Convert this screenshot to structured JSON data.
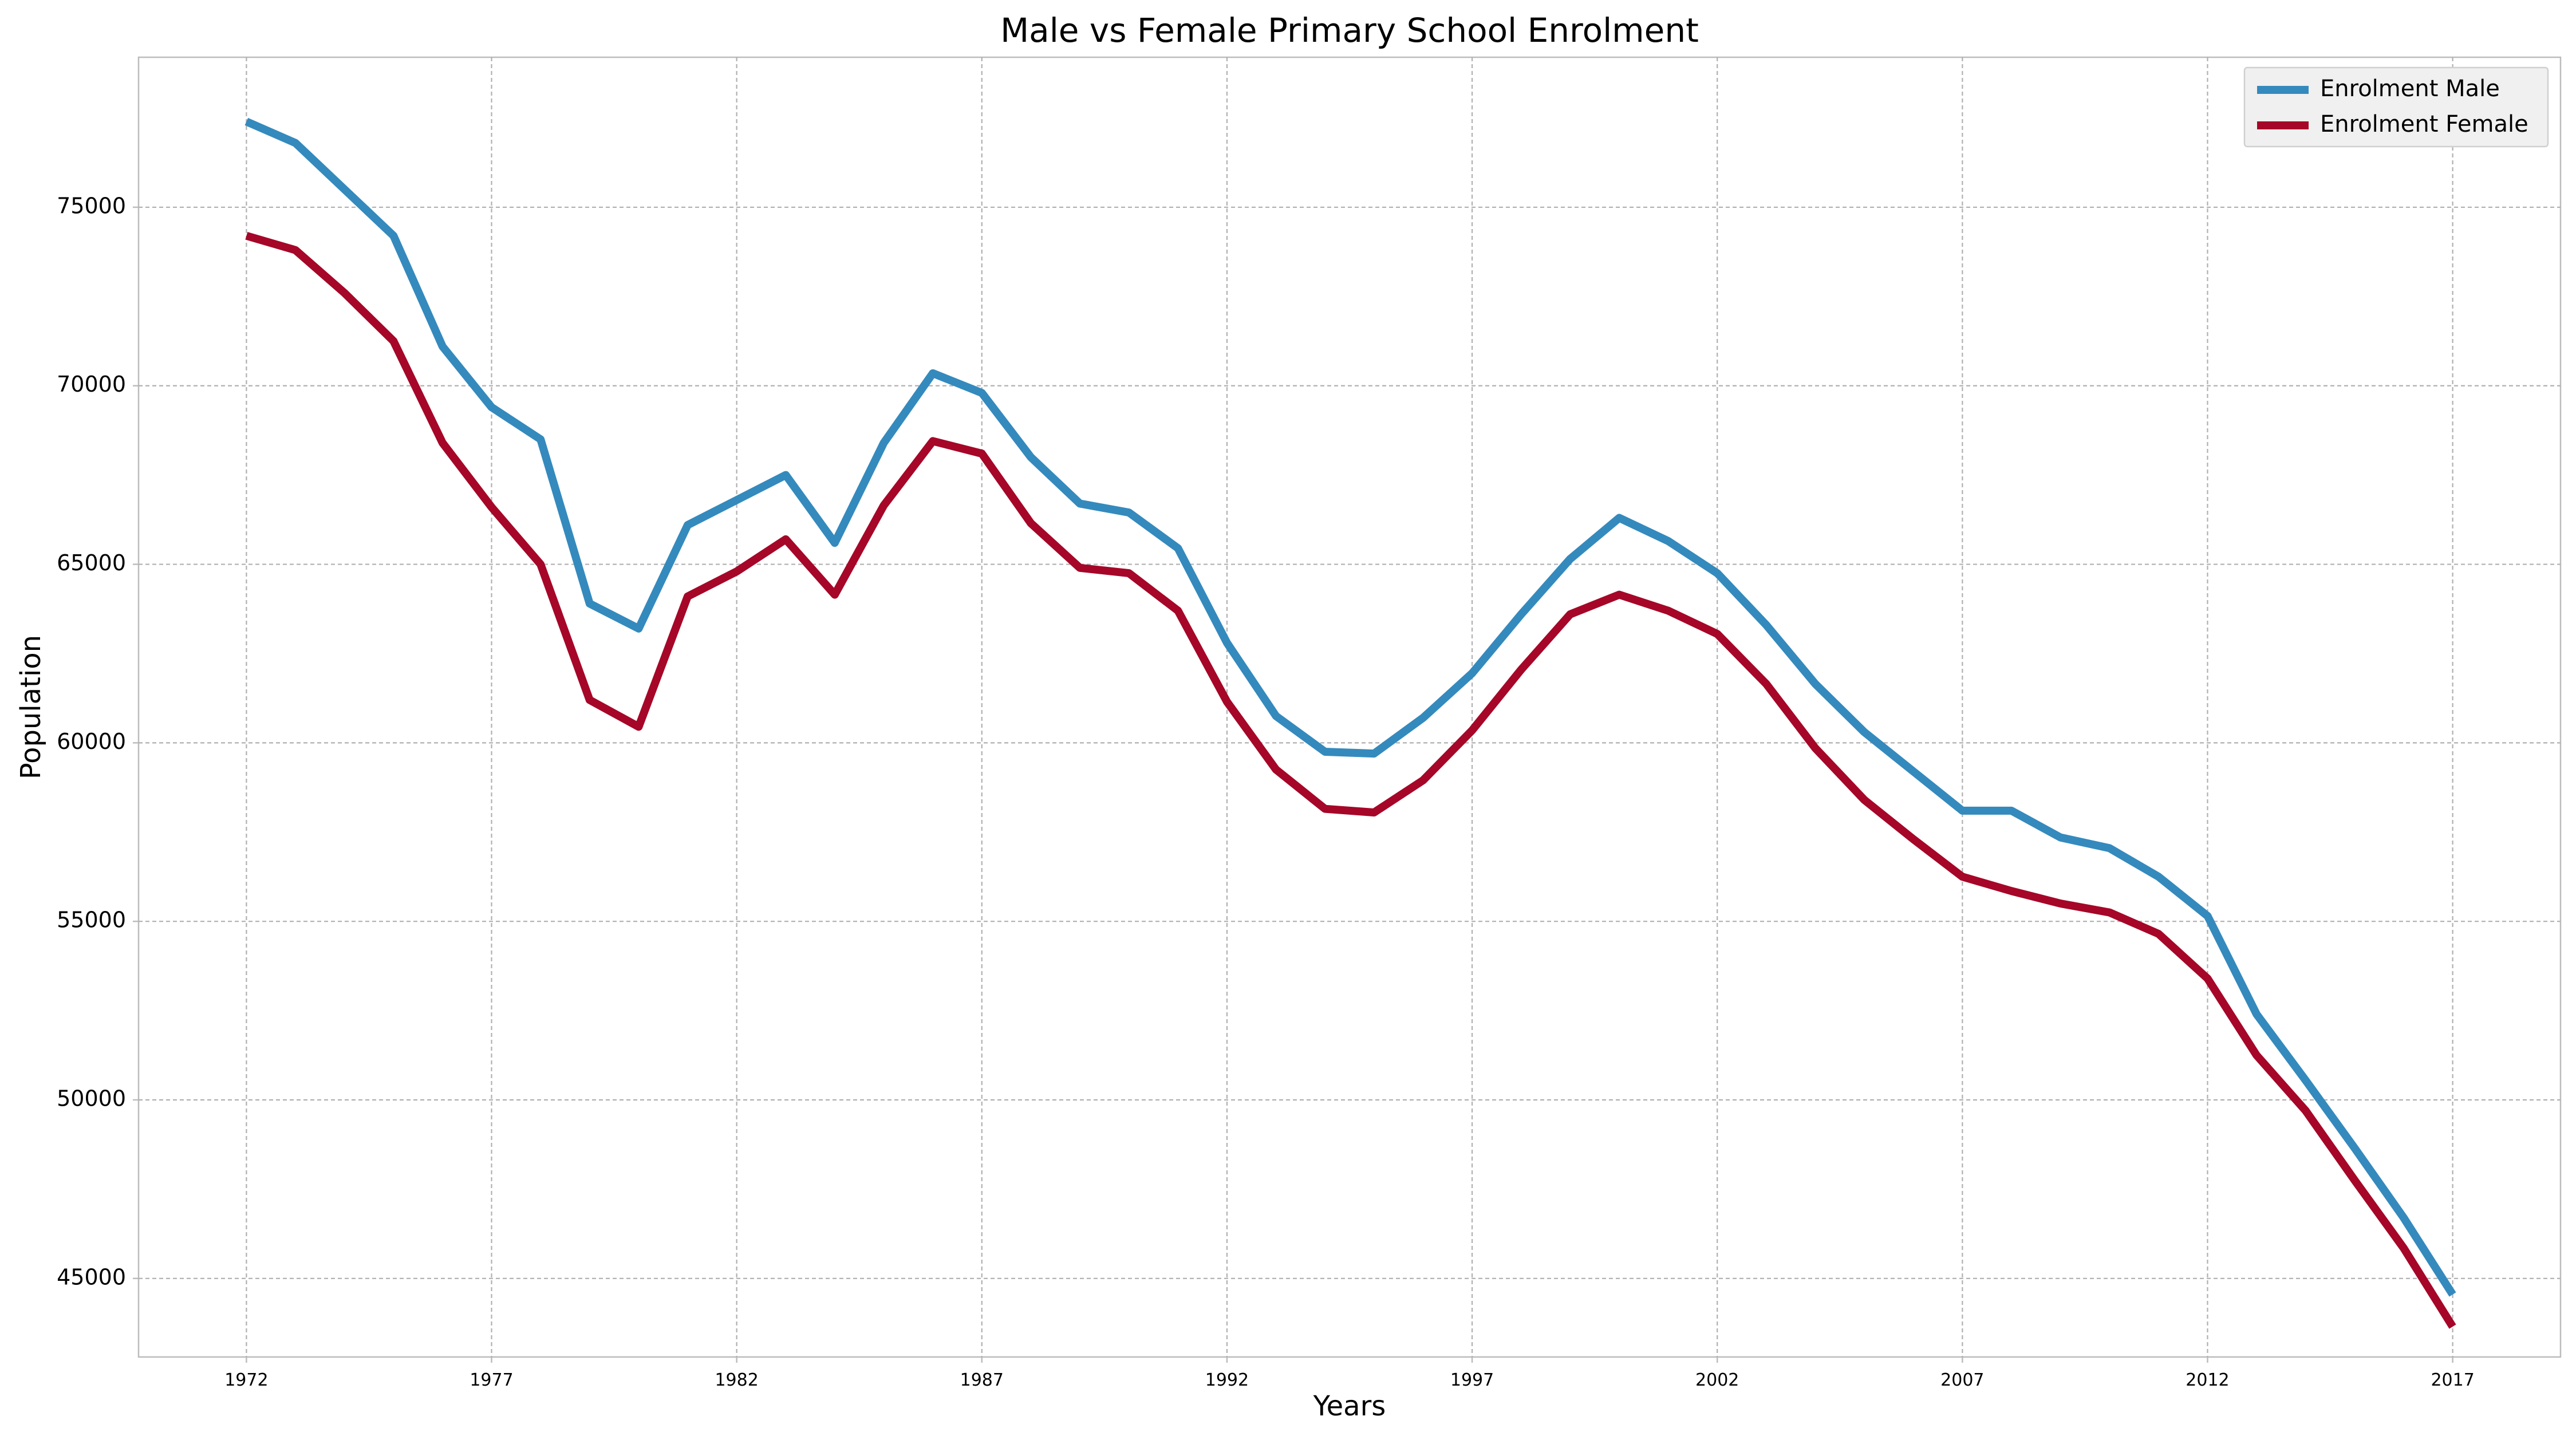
{
  "chart_data": {
    "type": "line",
    "title": "Male vs Female Primary School Enrolment",
    "xlabel": "Years",
    "ylabel": "Population",
    "xlim": [
      1969.8,
      2019.2
    ],
    "ylim": [
      42800,
      79200
    ],
    "x_ticks": [
      1972,
      1977,
      1982,
      1987,
      1992,
      1997,
      2002,
      2007,
      2012,
      2017
    ],
    "y_ticks": [
      45000,
      50000,
      55000,
      60000,
      65000,
      70000,
      75000
    ],
    "grid": true,
    "legend_position": "top-right",
    "x": [
      1972,
      1973,
      1974,
      1975,
      1976,
      1977,
      1978,
      1979,
      1980,
      1981,
      1982,
      1983,
      1984,
      1985,
      1986,
      1987,
      1988,
      1989,
      1990,
      1991,
      1992,
      1993,
      1994,
      1995,
      1996,
      1997,
      1998,
      1999,
      2000,
      2001,
      2002,
      2003,
      2004,
      2005,
      2006,
      2007,
      2008,
      2009,
      2010,
      2011,
      2012,
      2013,
      2014,
      2015,
      2016,
      2017
    ],
    "series": [
      {
        "name": "Enrolment Male",
        "color": "#348abd",
        "values": [
          77400,
          76800,
          75500,
          74200,
          71100,
          69400,
          68500,
          63900,
          63200,
          66100,
          66800,
          67500,
          65600,
          68400,
          70350,
          69800,
          68000,
          66700,
          66450,
          65450,
          62800,
          60750,
          59750,
          59700,
          60700,
          61950,
          63600,
          65150,
          66300,
          65650,
          64750,
          63300,
          61650,
          60300,
          59200,
          58100,
          58100,
          57350,
          57050,
          56250,
          55150,
          52400,
          50550,
          48650,
          46700,
          44550
        ]
      },
      {
        "name": "Enrolment Female",
        "color": "#a60628",
        "values": [
          74200,
          73800,
          72600,
          71250,
          68400,
          66600,
          65000,
          61200,
          60450,
          64100,
          64800,
          65700,
          64150,
          66650,
          68450,
          68100,
          66150,
          64900,
          64750,
          63700,
          61150,
          59250,
          58150,
          58050,
          58950,
          60350,
          62050,
          63600,
          64150,
          63700,
          63050,
          61650,
          59850,
          58400,
          57300,
          56250,
          55850,
          55500,
          55250,
          54650,
          53400,
          51250,
          49700,
          47750,
          45850,
          43650
        ]
      }
    ]
  }
}
